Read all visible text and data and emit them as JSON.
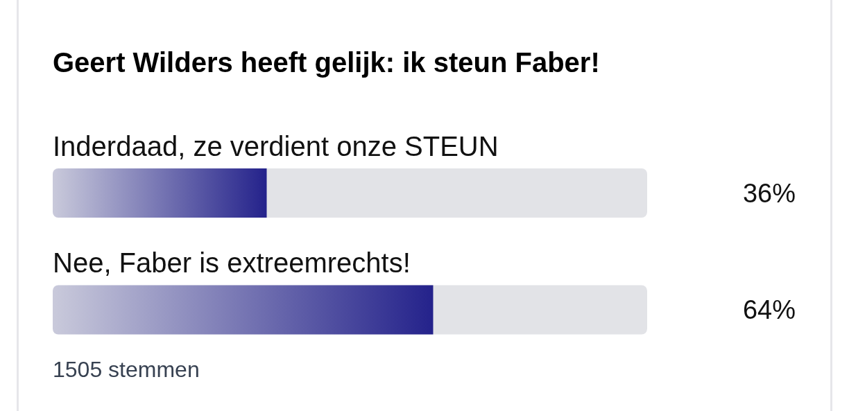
{
  "chart_data": {
    "type": "bar",
    "orientation": "horizontal",
    "title": "Geert Wilders heeft gelijk: ik steun Faber!",
    "categories": [
      "Inderdaad, ze verdient onze STEUN",
      "Nee, Faber is extreemrechts!"
    ],
    "values": [
      36,
      64
    ],
    "color": "#24228b",
    "value_labels": [
      "36%",
      "64%"
    ],
    "xlim": [
      0,
      100
    ],
    "tick_labels": "y",
    "annotations": [
      "1505 stemmen"
    ]
  }
}
